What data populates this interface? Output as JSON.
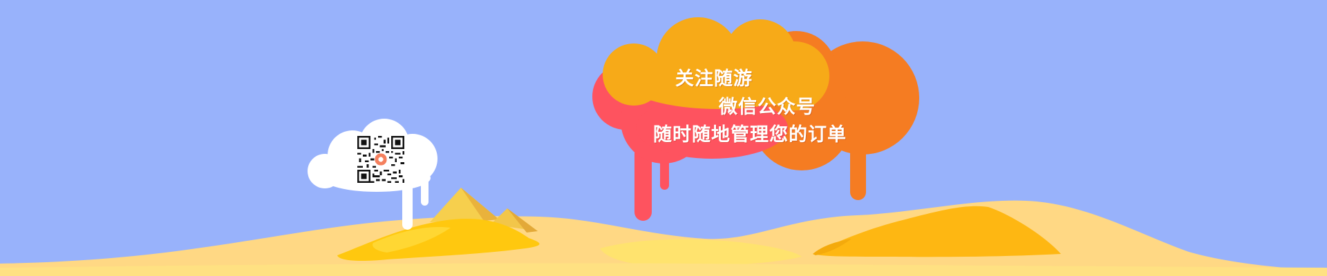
{
  "banner": {
    "promo": {
      "line1": "关注随游",
      "line2": "微信公众号",
      "line3": "随时随地管理您的订单"
    },
    "qr_icon": "wechat-qr-code-icon",
    "colors": {
      "sky": "#98b2fb",
      "sand_light": "#ffd884",
      "sand_dark": "#ffc61a",
      "cloud_red": "#fe535f",
      "cloud_orange": "#f57c22",
      "cloud_yellow": "#f7aa18",
      "qr_accent": "#f4805e"
    }
  }
}
